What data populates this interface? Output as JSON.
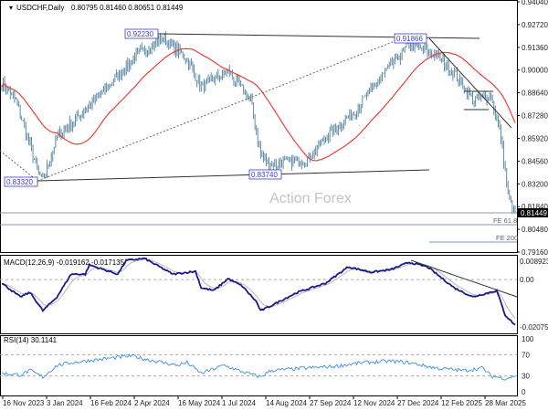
{
  "header": {
    "symbol": "USDCHF,Daily",
    "ohlc": "0.80795 0.81460 0.80651 0.81449"
  },
  "watermark": "Action Forex",
  "colors": {
    "bars": "#4f7f9c",
    "ma": "#e8403a",
    "macd": "#1a1a8c",
    "signal": "#b8b8b8",
    "rsi": "#3d8ee8",
    "current": "#000000"
  },
  "annotations": {
    "high1": "0.92230",
    "high2": "0.91866",
    "low1": "0.83320",
    "low2": "0.83740",
    "fe618": "FE 61.8",
    "fe200": "FE 200"
  },
  "chart_data": [
    {
      "type": "ohlc",
      "title": "USDCHF,Daily",
      "ylim": [
        0.7916,
        0.9404
      ],
      "yticks": [
        "0.94040",
        "0.92720",
        "0.91360",
        "0.90000",
        "0.88640",
        "0.87280",
        "0.85920",
        "0.84560",
        "0.83200",
        "0.81840",
        "0.80480",
        "0.79160"
      ],
      "current_price": "0.81449",
      "close_keypoints": [
        [
          0,
          0.8926
        ],
        [
          10,
          0.8818
        ],
        [
          26,
          0.8383
        ],
        [
          29,
          0.834
        ],
        [
          39,
          0.86
        ],
        [
          59,
          0.8763
        ],
        [
          78,
          0.8926
        ],
        [
          95,
          0.9089
        ],
        [
          114,
          0.9187
        ],
        [
          131,
          0.9062
        ],
        [
          141,
          0.8899
        ],
        [
          160,
          0.8991
        ],
        [
          176,
          0.8818
        ],
        [
          183,
          0.8492
        ],
        [
          190,
          0.8437
        ],
        [
          216,
          0.8465
        ],
        [
          229,
          0.86
        ],
        [
          248,
          0.8736
        ],
        [
          268,
          0.8953
        ],
        [
          288,
          0.9154
        ],
        [
          307,
          0.9089
        ],
        [
          320,
          0.898
        ],
        [
          333,
          0.8818
        ],
        [
          346,
          0.8845
        ],
        [
          353,
          0.86
        ],
        [
          358,
          0.8247
        ],
        [
          363,
          0.81449
        ]
      ]
    },
    {
      "type": "line",
      "title": "MACD(12,26,9) -0.019162 -0.017135",
      "ylim": [
        -0.020759,
        0.008923
      ],
      "yticks": [
        "0.008923",
        "0.00",
        "-0.020759"
      ],
      "macd_keypoints": [
        [
          0,
          -0.0015
        ],
        [
          13,
          -0.0073
        ],
        [
          20,
          -0.0054
        ],
        [
          29,
          -0.0131
        ],
        [
          39,
          -0.0073
        ],
        [
          49,
          0.0023
        ],
        [
          59,
          0.0023
        ],
        [
          62,
          0.0062
        ],
        [
          82,
          0.0023
        ],
        [
          88,
          0.0081
        ],
        [
          101,
          0.0089
        ],
        [
          121,
          0.0023
        ],
        [
          137,
          0.0035
        ],
        [
          141,
          -0.0035
        ],
        [
          150,
          -0.0046
        ],
        [
          160,
          0.0004
        ],
        [
          170,
          -0.0027
        ],
        [
          180,
          -0.0093
        ],
        [
          183,
          -0.0131
        ],
        [
          190,
          -0.0112
        ],
        [
          196,
          -0.0093
        ],
        [
          209,
          -0.0054
        ],
        [
          229,
          -0.0015
        ],
        [
          245,
          0.0054
        ],
        [
          261,
          0.0031
        ],
        [
          275,
          0.0042
        ],
        [
          288,
          0.0073
        ],
        [
          301,
          0.0054
        ],
        [
          320,
          -0.0035
        ],
        [
          333,
          -0.0073
        ],
        [
          350,
          -0.0046
        ],
        [
          356,
          -0.015
        ],
        [
          363,
          -0.019162
        ]
      ]
    },
    {
      "type": "line",
      "title": "RSI(14) 30.1141",
      "ylim": [
        0,
        100
      ],
      "yticks": [
        "100",
        "70",
        "30",
        "0"
      ],
      "rsi_keypoints": [
        [
          0,
          35
        ],
        [
          13,
          32
        ],
        [
          20,
          40
        ],
        [
          29,
          28
        ],
        [
          39,
          50
        ],
        [
          49,
          55
        ],
        [
          65,
          60
        ],
        [
          92,
          68
        ],
        [
          101,
          62
        ],
        [
          124,
          50
        ],
        [
          131,
          55
        ],
        [
          141,
          35
        ],
        [
          157,
          50
        ],
        [
          170,
          38
        ],
        [
          183,
          28
        ],
        [
          190,
          40
        ],
        [
          216,
          45
        ],
        [
          235,
          48
        ],
        [
          255,
          55
        ],
        [
          275,
          58
        ],
        [
          288,
          55
        ],
        [
          307,
          45
        ],
        [
          327,
          40
        ],
        [
          340,
          45
        ],
        [
          346,
          30
        ],
        [
          356,
          25
        ],
        [
          363,
          30.11
        ]
      ]
    }
  ],
  "xaxis": {
    "labels": [
      "16 Nov 2023",
      "3 Jan 2024",
      "16 Feb 2024",
      "2 Apr 2024",
      "16 May 2024",
      "1 Jul 2024",
      "14 Aug 2024",
      "27 Sep 2024",
      "12 Nov 2024",
      "27 Dec 2024",
      "12 Feb 2025",
      "28 Mar 2025"
    ]
  }
}
